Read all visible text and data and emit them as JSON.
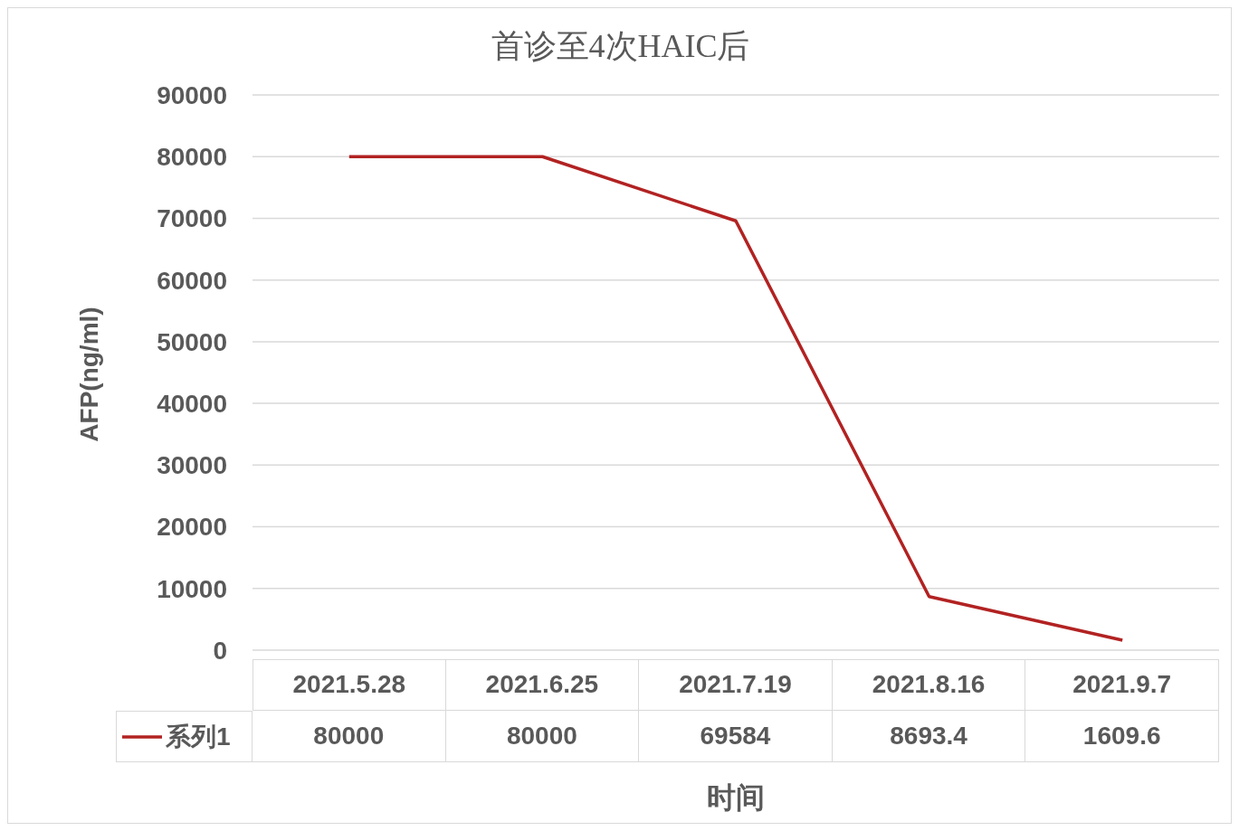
{
  "chart_data": {
    "type": "line",
    "title": "首诊至4次HAIC后",
    "xlabel": "时间",
    "ylabel": "AFP(ng/ml)",
    "categories": [
      "2021.5.28",
      "2021.6.25",
      "2021.7.19",
      "2021.8.16",
      "2021.9.7"
    ],
    "series": [
      {
        "name": "系列1",
        "color": "#b22222",
        "values": [
          80000,
          80000,
          69584,
          8693.4,
          1609.6
        ]
      }
    ],
    "ylim": [
      0,
      90000
    ],
    "yticks": [
      0,
      10000,
      20000,
      30000,
      40000,
      50000,
      60000,
      70000,
      80000,
      90000
    ],
    "grid": "y",
    "legend": "bottom",
    "data_labels": true,
    "marker": "none",
    "line_style": "solid"
  }
}
